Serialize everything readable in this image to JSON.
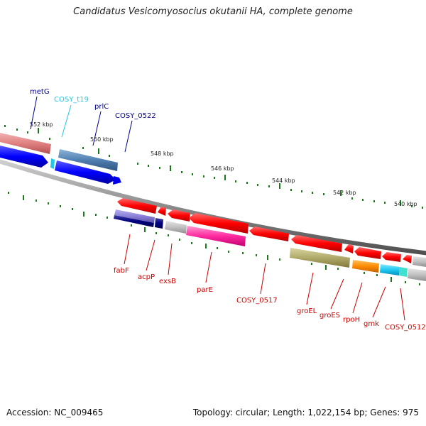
{
  "title": "Candidatus Vesicomyosocius okutanii HA, complete genome",
  "footer": {
    "accession": "Accession: NC_009465",
    "topology": "Topology: circular; Length: 1,022,154 bp; Genes: 975"
  },
  "scale_labels": [
    "552 kbp",
    "550 kbp",
    "548 kbp",
    "546 kbp",
    "544 kbp",
    "542 kbp",
    "540 kbp"
  ],
  "genes_top": [
    {
      "label": "metG",
      "color": "#00008b"
    },
    {
      "label": "COSY_t19",
      "color": "#1ec8e6"
    },
    {
      "label": "prlC",
      "color": "#00008b"
    },
    {
      "label": "COSY_0522",
      "color": "#00008b"
    }
  ],
  "genes_bottom": [
    {
      "label": "fabF",
      "color": "#cc0000"
    },
    {
      "label": "acpP",
      "color": "#cc0000"
    },
    {
      "label": "exsB",
      "color": "#cc0000"
    },
    {
      "label": "parE",
      "color": "#cc0000"
    },
    {
      "label": "COSY_0517",
      "color": "#cc0000"
    },
    {
      "label": "groEL",
      "color": "#cc0000"
    },
    {
      "label": "groES",
      "color": "#cc0000"
    },
    {
      "label": "rpoH",
      "color": "#cc0000"
    },
    {
      "label": "gmk",
      "color": "#cc0000"
    },
    {
      "label": "COSY_0512",
      "color": "#cc0000"
    }
  ]
}
